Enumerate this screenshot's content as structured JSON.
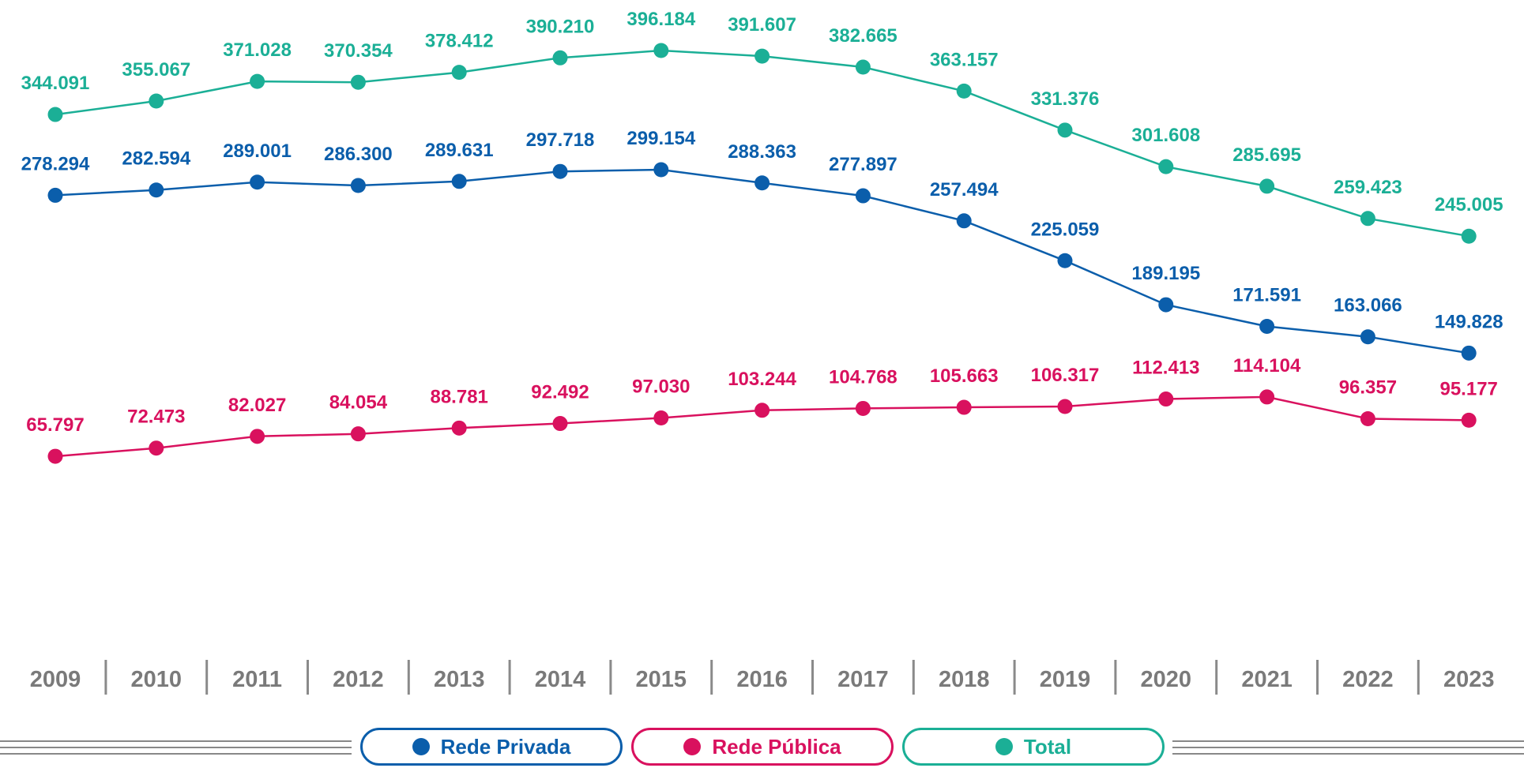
{
  "chart_data": {
    "type": "line",
    "x": [
      "2009",
      "2010",
      "2011",
      "2012",
      "2013",
      "2014",
      "2015",
      "2016",
      "2017",
      "2018",
      "2019",
      "2020",
      "2021",
      "2022",
      "2023"
    ],
    "series": [
      {
        "key": "total",
        "name": "Total",
        "color": "#1BAF96",
        "values": [
          344091,
          355067,
          371028,
          370354,
          378412,
          390210,
          396184,
          391607,
          382665,
          363157,
          331376,
          301608,
          285695,
          259423,
          245005
        ],
        "labels": [
          "344.091",
          "355.067",
          "371.028",
          "370.354",
          "378.412",
          "390.210",
          "396.184",
          "391.607",
          "382.665",
          "363.157",
          "331.376",
          "301.608",
          "285.695",
          "259.423",
          "245.005"
        ]
      },
      {
        "key": "privada",
        "name": "Rede Privada",
        "color": "#0B5EAB",
        "values": [
          278294,
          282594,
          289001,
          286300,
          289631,
          297718,
          299154,
          288363,
          277897,
          257494,
          225059,
          189195,
          171591,
          163066,
          149828
        ],
        "labels": [
          "278.294",
          "282.594",
          "289.001",
          "286.300",
          "289.631",
          "297.718",
          "299.154",
          "288.363",
          "277.897",
          "257.494",
          "225.059",
          "189.195",
          "171.591",
          "163.066",
          "149.828"
        ]
      },
      {
        "key": "publica",
        "name": "Rede Pública",
        "color": "#D9115E",
        "values": [
          65797,
          72473,
          82027,
          84054,
          88781,
          92492,
          97030,
          103244,
          104768,
          105663,
          106317,
          112413,
          114104,
          96357,
          95177
        ],
        "labels": [
          "65.797",
          "72.473",
          "82.027",
          "84.054",
          "88.781",
          "92.492",
          "97.030",
          "103.244",
          "104.768",
          "105.663",
          "106.317",
          "112.413",
          "114.104",
          "96.357",
          "95.177"
        ]
      }
    ],
    "title": "",
    "xlabel": "",
    "ylabel": "",
    "axis_color": "#7a7a7a",
    "legend": [
      "Rede Privada",
      "Rede Pública",
      "Total"
    ],
    "legend_placement": "bottom-center"
  }
}
